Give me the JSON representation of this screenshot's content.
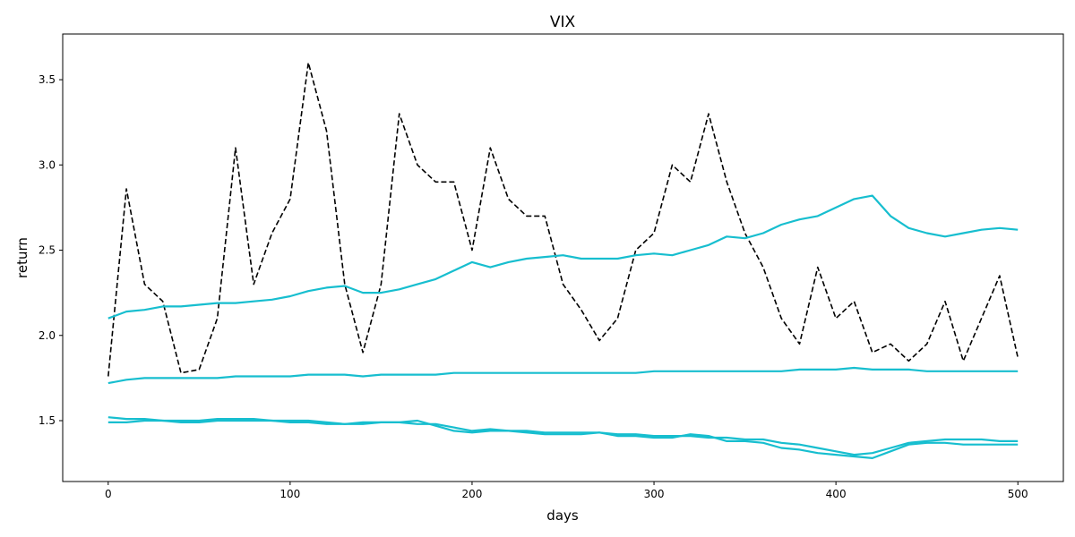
{
  "chart_data": {
    "type": "line",
    "title": "VIX",
    "x_label": "days",
    "y_label": "return",
    "x": [
      0,
      10,
      20,
      30,
      40,
      50,
      60,
      70,
      80,
      90,
      100,
      110,
      120,
      130,
      140,
      150,
      160,
      170,
      180,
      190,
      200,
      210,
      220,
      230,
      240,
      250,
      260,
      270,
      280,
      290,
      300,
      310,
      320,
      330,
      340,
      350,
      360,
      370,
      380,
      390,
      400,
      410,
      420,
      430,
      440,
      450,
      460,
      470,
      480,
      490,
      500
    ],
    "series": [
      {
        "color": "#000000",
        "dash": true,
        "values": [
          1.76,
          2.86,
          2.3,
          2.2,
          1.78,
          1.8,
          2.1,
          3.1,
          2.3,
          2.6,
          2.8,
          3.6,
          3.2,
          2.3,
          1.9,
          2.3,
          3.3,
          3.0,
          2.9,
          2.9,
          2.5,
          3.1,
          2.8,
          2.7,
          2.7,
          2.3,
          2.15,
          1.97,
          2.1,
          2.5,
          2.6,
          3.0,
          2.9,
          3.3,
          2.9,
          2.6,
          2.4,
          2.1,
          1.95,
          2.4,
          2.1,
          2.2,
          1.9,
          1.95,
          1.85,
          1.95,
          2.2,
          1.85,
          2.1,
          2.35,
          1.87
        ]
      },
      {
        "color": "#17becf",
        "values": [
          2.1,
          2.14,
          2.15,
          2.17,
          2.17,
          2.18,
          2.19,
          2.19,
          2.2,
          2.21,
          2.23,
          2.26,
          2.28,
          2.29,
          2.25,
          2.25,
          2.27,
          2.3,
          2.33,
          2.38,
          2.43,
          2.4,
          2.43,
          2.45,
          2.46,
          2.47,
          2.45,
          2.45,
          2.45,
          2.47,
          2.48,
          2.47,
          2.5,
          2.53,
          2.58,
          2.57,
          2.6,
          2.65,
          2.68,
          2.7,
          2.75,
          2.8,
          2.82,
          2.7,
          2.63,
          2.6,
          2.58,
          2.6,
          2.62,
          2.63,
          2.62
        ]
      },
      {
        "color": "#17becf",
        "values": [
          1.72,
          1.74,
          1.75,
          1.75,
          1.75,
          1.75,
          1.75,
          1.76,
          1.76,
          1.76,
          1.76,
          1.77,
          1.77,
          1.77,
          1.76,
          1.77,
          1.77,
          1.77,
          1.77,
          1.78,
          1.78,
          1.78,
          1.78,
          1.78,
          1.78,
          1.78,
          1.78,
          1.78,
          1.78,
          1.78,
          1.79,
          1.79,
          1.79,
          1.79,
          1.79,
          1.79,
          1.79,
          1.79,
          1.8,
          1.8,
          1.8,
          1.81,
          1.8,
          1.8,
          1.8,
          1.79,
          1.79,
          1.79,
          1.79,
          1.79,
          1.79
        ]
      },
      {
        "color": "#17becf",
        "values": [
          1.52,
          1.51,
          1.51,
          1.5,
          1.5,
          1.5,
          1.51,
          1.51,
          1.51,
          1.5,
          1.5,
          1.5,
          1.49,
          1.48,
          1.49,
          1.49,
          1.49,
          1.48,
          1.48,
          1.46,
          1.44,
          1.45,
          1.44,
          1.44,
          1.43,
          1.43,
          1.43,
          1.43,
          1.42,
          1.42,
          1.41,
          1.41,
          1.41,
          1.4,
          1.4,
          1.39,
          1.39,
          1.37,
          1.36,
          1.34,
          1.32,
          1.3,
          1.31,
          1.34,
          1.37,
          1.38,
          1.39,
          1.39,
          1.39,
          1.38,
          1.38
        ]
      },
      {
        "color": "#17becf",
        "values": [
          1.49,
          1.49,
          1.5,
          1.5,
          1.49,
          1.49,
          1.5,
          1.5,
          1.5,
          1.5,
          1.49,
          1.49,
          1.48,
          1.48,
          1.48,
          1.49,
          1.49,
          1.5,
          1.47,
          1.44,
          1.43,
          1.44,
          1.44,
          1.43,
          1.42,
          1.42,
          1.42,
          1.43,
          1.41,
          1.41,
          1.4,
          1.4,
          1.42,
          1.41,
          1.38,
          1.38,
          1.37,
          1.34,
          1.33,
          1.31,
          1.3,
          1.29,
          1.28,
          1.32,
          1.36,
          1.37,
          1.37,
          1.36,
          1.36,
          1.36,
          1.36
        ]
      }
    ],
    "xlim": [
      -25,
      525
    ],
    "xticks": [
      0,
      100,
      200,
      300,
      400,
      500
    ],
    "ylim": [
      1.143,
      3.768
    ],
    "yticks": [
      1.5,
      {
        "value": 2,
        "label": "2.0"
      },
      2.5,
      {
        "value": 3,
        "label": "3.0"
      },
      3.5
    ]
  }
}
